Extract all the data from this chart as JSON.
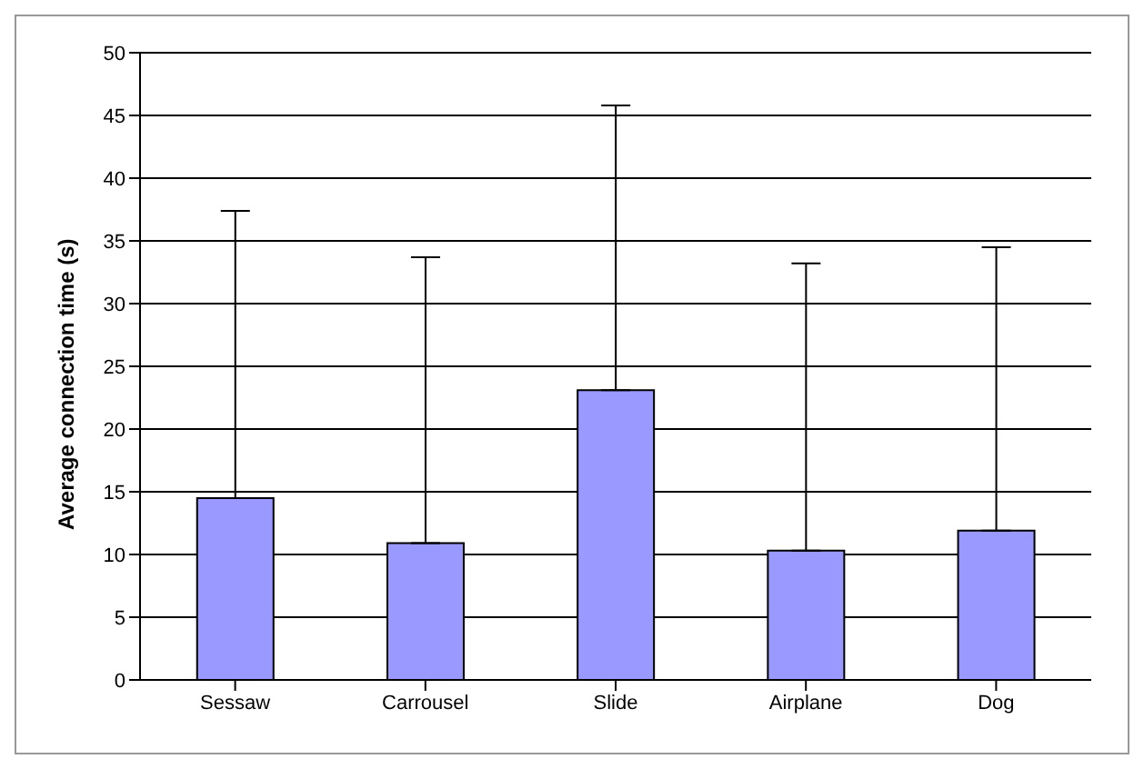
{
  "chart_data": {
    "type": "bar",
    "ylabel": "Average connection time (s)",
    "categories": [
      "Sessaw",
      "Carrousel",
      "Slide",
      "Airplane",
      "Dog"
    ],
    "values": [
      14.5,
      10.9,
      23.1,
      10.3,
      11.9
    ],
    "errors": [
      [
        14.5,
        37.4
      ],
      [
        10.9,
        33.7
      ],
      [
        23.1,
        45.8
      ],
      [
        10.3,
        33.2
      ],
      [
        11.9,
        34.5
      ]
    ],
    "color": "#9999ff",
    "ylim": [
      0,
      50
    ],
    "yticks": [
      0,
      5,
      10,
      15,
      20,
      25,
      30,
      35,
      40,
      45,
      50
    ],
    "grid": "y",
    "legend": false
  }
}
